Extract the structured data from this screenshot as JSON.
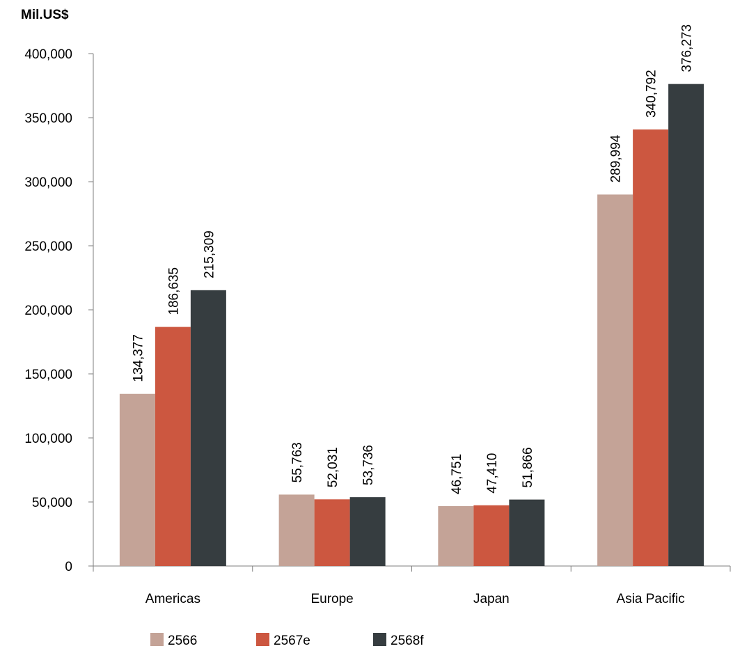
{
  "chart_data": {
    "type": "bar",
    "title": "",
    "unit_label": "Mil.US$",
    "xlabel": "",
    "ylabel": "",
    "ylim": [
      0,
      400000
    ],
    "yticks": [
      0,
      50000,
      100000,
      150000,
      200000,
      250000,
      300000,
      350000,
      400000
    ],
    "ytick_labels": [
      "0",
      "50,000",
      "100,000",
      "150,000",
      "200,000",
      "250,000",
      "300,000",
      "350,000",
      "400,000"
    ],
    "grid": false,
    "legend_position": "bottom",
    "categories": [
      "Americas",
      "Europe",
      "Japan",
      "Asia Pacific"
    ],
    "series": [
      {
        "name": "2566",
        "color": "#c4a397",
        "values": [
          134377,
          55763,
          46751,
          289994
        ],
        "labels": [
          "134,377",
          "55,763",
          "46,751",
          "289,994"
        ]
      },
      {
        "name": "2567e",
        "color": "#cc5740",
        "values": [
          186635,
          52031,
          47410,
          340792
        ],
        "labels": [
          "186,635",
          "52,031",
          "47,410",
          "340,792"
        ]
      },
      {
        "name": "2568f",
        "color": "#363d40",
        "values": [
          215309,
          53736,
          51866,
          376273
        ],
        "labels": [
          "215,309",
          "53,736",
          "51,866",
          "376,273"
        ]
      }
    ]
  }
}
